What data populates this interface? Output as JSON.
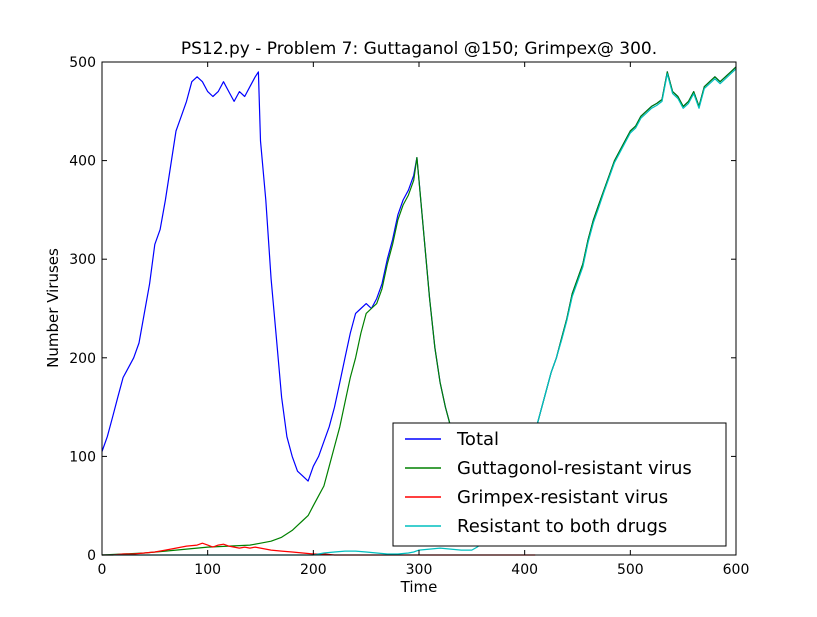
{
  "chart_data": {
    "type": "line",
    "title": "PS12.py - Problem 7: Guttaganol @150; Grimpex@ 300.",
    "xlabel": "Time",
    "ylabel": "Number Viruses",
    "xlim": [
      0,
      600
    ],
    "ylim": [
      0,
      500
    ],
    "xticks": [
      0,
      100,
      200,
      300,
      400,
      500,
      600
    ],
    "yticks": [
      0,
      100,
      200,
      300,
      400,
      500
    ],
    "grid": false,
    "legend_position": "lower-right",
    "series": [
      {
        "name": "Total",
        "color": "#0000ff",
        "points": [
          [
            0,
            105
          ],
          [
            5,
            120
          ],
          [
            10,
            140
          ],
          [
            15,
            160
          ],
          [
            20,
            180
          ],
          [
            25,
            190
          ],
          [
            30,
            200
          ],
          [
            35,
            215
          ],
          [
            40,
            245
          ],
          [
            45,
            275
          ],
          [
            50,
            315
          ],
          [
            55,
            330
          ],
          [
            60,
            360
          ],
          [
            65,
            395
          ],
          [
            70,
            430
          ],
          [
            75,
            445
          ],
          [
            80,
            460
          ],
          [
            85,
            480
          ],
          [
            90,
            485
          ],
          [
            95,
            480
          ],
          [
            100,
            470
          ],
          [
            105,
            465
          ],
          [
            110,
            470
          ],
          [
            115,
            480
          ],
          [
            120,
            470
          ],
          [
            125,
            460
          ],
          [
            130,
            470
          ],
          [
            135,
            465
          ],
          [
            140,
            475
          ],
          [
            145,
            485
          ],
          [
            148,
            490
          ],
          [
            150,
            420
          ],
          [
            155,
            360
          ],
          [
            160,
            280
          ],
          [
            165,
            220
          ],
          [
            170,
            160
          ],
          [
            175,
            120
          ],
          [
            180,
            100
          ],
          [
            185,
            85
          ],
          [
            190,
            80
          ],
          [
            195,
            75
          ],
          [
            200,
            90
          ],
          [
            205,
            100
          ],
          [
            210,
            115
          ],
          [
            215,
            130
          ],
          [
            220,
            150
          ],
          [
            225,
            175
          ],
          [
            230,
            200
          ],
          [
            235,
            225
          ],
          [
            240,
            245
          ],
          [
            245,
            250
          ],
          [
            250,
            255
          ],
          [
            255,
            250
          ],
          [
            260,
            260
          ],
          [
            265,
            275
          ],
          [
            270,
            300
          ],
          [
            275,
            320
          ],
          [
            280,
            345
          ],
          [
            285,
            360
          ],
          [
            290,
            370
          ],
          [
            295,
            385
          ],
          [
            298,
            403
          ],
          [
            300,
            380
          ],
          [
            305,
            320
          ],
          [
            310,
            260
          ],
          [
            315,
            210
          ],
          [
            320,
            175
          ],
          [
            325,
            150
          ],
          [
            330,
            130
          ],
          [
            335,
            115
          ],
          [
            340,
            95
          ],
          [
            345,
            75
          ],
          [
            350,
            55
          ],
          [
            355,
            40
          ],
          [
            360,
            30
          ],
          [
            365,
            25
          ],
          [
            370,
            20
          ],
          [
            375,
            20
          ],
          [
            380,
            25
          ],
          [
            385,
            35
          ],
          [
            390,
            55
          ],
          [
            395,
            75
          ],
          [
            400,
            95
          ],
          [
            405,
            110
          ],
          [
            410,
            125
          ],
          [
            415,
            145
          ],
          [
            420,
            165
          ],
          [
            425,
            185
          ],
          [
            430,
            200
          ],
          [
            435,
            220
          ],
          [
            440,
            240
          ],
          [
            445,
            265
          ],
          [
            450,
            280
          ],
          [
            455,
            295
          ],
          [
            460,
            320
          ],
          [
            465,
            340
          ],
          [
            470,
            355
          ],
          [
            475,
            370
          ],
          [
            480,
            385
          ],
          [
            485,
            400
          ],
          [
            490,
            410
          ],
          [
            495,
            420
          ],
          [
            500,
            430
          ],
          [
            505,
            435
          ],
          [
            510,
            445
          ],
          [
            515,
            450
          ],
          [
            520,
            455
          ],
          [
            525,
            458
          ],
          [
            530,
            462
          ],
          [
            535,
            490
          ],
          [
            540,
            470
          ],
          [
            545,
            465
          ],
          [
            550,
            455
          ],
          [
            555,
            460
          ],
          [
            560,
            470
          ],
          [
            565,
            455
          ],
          [
            570,
            475
          ],
          [
            575,
            480
          ],
          [
            580,
            485
          ],
          [
            585,
            480
          ],
          [
            590,
            485
          ],
          [
            595,
            490
          ],
          [
            600,
            495
          ]
        ]
      },
      {
        "name": "Guttagonol-resistant virus",
        "color": "#008000",
        "points": [
          [
            0,
            0
          ],
          [
            20,
            1
          ],
          [
            40,
            2
          ],
          [
            60,
            4
          ],
          [
            80,
            6
          ],
          [
            100,
            8
          ],
          [
            120,
            9
          ],
          [
            140,
            10
          ],
          [
            150,
            12
          ],
          [
            160,
            14
          ],
          [
            170,
            18
          ],
          [
            180,
            25
          ],
          [
            185,
            30
          ],
          [
            190,
            35
          ],
          [
            195,
            40
          ],
          [
            200,
            50
          ],
          [
            205,
            60
          ],
          [
            210,
            70
          ],
          [
            215,
            90
          ],
          [
            220,
            110
          ],
          [
            225,
            130
          ],
          [
            230,
            155
          ],
          [
            235,
            180
          ],
          [
            240,
            200
          ],
          [
            245,
            225
          ],
          [
            250,
            245
          ],
          [
            255,
            250
          ],
          [
            260,
            255
          ],
          [
            265,
            270
          ],
          [
            270,
            295
          ],
          [
            275,
            315
          ],
          [
            280,
            340
          ],
          [
            285,
            355
          ],
          [
            290,
            365
          ],
          [
            295,
            380
          ],
          [
            298,
            403
          ],
          [
            300,
            380
          ],
          [
            305,
            320
          ],
          [
            310,
            260
          ],
          [
            315,
            210
          ],
          [
            320,
            175
          ],
          [
            325,
            150
          ],
          [
            330,
            130
          ],
          [
            335,
            115
          ],
          [
            340,
            95
          ],
          [
            345,
            75
          ],
          [
            350,
            55
          ],
          [
            355,
            40
          ],
          [
            360,
            30
          ],
          [
            365,
            25
          ],
          [
            370,
            20
          ],
          [
            375,
            20
          ],
          [
            380,
            25
          ],
          [
            385,
            35
          ],
          [
            390,
            55
          ],
          [
            395,
            75
          ],
          [
            400,
            95
          ],
          [
            405,
            110
          ],
          [
            410,
            125
          ],
          [
            415,
            145
          ],
          [
            420,
            165
          ],
          [
            425,
            185
          ],
          [
            430,
            200
          ],
          [
            435,
            220
          ],
          [
            440,
            240
          ],
          [
            445,
            265
          ],
          [
            450,
            280
          ],
          [
            455,
            295
          ],
          [
            460,
            320
          ],
          [
            465,
            340
          ],
          [
            470,
            355
          ],
          [
            475,
            370
          ],
          [
            480,
            385
          ],
          [
            485,
            400
          ],
          [
            490,
            410
          ],
          [
            495,
            420
          ],
          [
            500,
            430
          ],
          [
            505,
            435
          ],
          [
            510,
            445
          ],
          [
            515,
            450
          ],
          [
            520,
            455
          ],
          [
            525,
            458
          ],
          [
            530,
            462
          ],
          [
            535,
            490
          ],
          [
            540,
            470
          ],
          [
            545,
            465
          ],
          [
            550,
            455
          ],
          [
            555,
            460
          ],
          [
            560,
            470
          ],
          [
            565,
            455
          ],
          [
            570,
            475
          ],
          [
            575,
            480
          ],
          [
            580,
            485
          ],
          [
            585,
            480
          ],
          [
            590,
            485
          ],
          [
            595,
            490
          ],
          [
            600,
            495
          ]
        ]
      },
      {
        "name": "Grimpex-resistant virus",
        "color": "#ff0000",
        "points": [
          [
            0,
            0
          ],
          [
            10,
            0
          ],
          [
            20,
            1
          ],
          [
            30,
            1
          ],
          [
            40,
            2
          ],
          [
            50,
            3
          ],
          [
            60,
            5
          ],
          [
            70,
            7
          ],
          [
            80,
            9
          ],
          [
            90,
            10
          ],
          [
            95,
            12
          ],
          [
            100,
            10
          ],
          [
            105,
            8
          ],
          [
            110,
            10
          ],
          [
            115,
            11
          ],
          [
            120,
            9
          ],
          [
            125,
            8
          ],
          [
            130,
            7
          ],
          [
            135,
            8
          ],
          [
            140,
            7
          ],
          [
            145,
            8
          ],
          [
            150,
            7
          ],
          [
            160,
            5
          ],
          [
            170,
            4
          ],
          [
            180,
            3
          ],
          [
            190,
            2
          ],
          [
            200,
            1
          ],
          [
            210,
            1
          ],
          [
            220,
            0
          ],
          [
            240,
            0
          ],
          [
            260,
            0
          ],
          [
            280,
            0
          ],
          [
            300,
            0
          ],
          [
            320,
            0
          ],
          [
            340,
            0
          ],
          [
            360,
            0
          ],
          [
            380,
            0
          ],
          [
            400,
            0
          ],
          [
            410,
            0
          ]
        ]
      },
      {
        "name": "Resistant to both drugs",
        "color": "#00bfbf",
        "points": [
          [
            0,
            0
          ],
          [
            50,
            0
          ],
          [
            100,
            0
          ],
          [
            150,
            0
          ],
          [
            200,
            0
          ],
          [
            210,
            2
          ],
          [
            220,
            3
          ],
          [
            230,
            4
          ],
          [
            240,
            4
          ],
          [
            250,
            3
          ],
          [
            260,
            2
          ],
          [
            270,
            1
          ],
          [
            280,
            1
          ],
          [
            290,
            2
          ],
          [
            295,
            3
          ],
          [
            300,
            5
          ],
          [
            310,
            6
          ],
          [
            320,
            7
          ],
          [
            330,
            6
          ],
          [
            340,
            5
          ],
          [
            350,
            5
          ],
          [
            355,
            8
          ],
          [
            360,
            12
          ],
          [
            365,
            15
          ],
          [
            370,
            18
          ],
          [
            375,
            20
          ],
          [
            380,
            25
          ],
          [
            385,
            35
          ],
          [
            390,
            55
          ],
          [
            395,
            75
          ],
          [
            400,
            95
          ],
          [
            405,
            110
          ],
          [
            410,
            125
          ],
          [
            415,
            145
          ],
          [
            420,
            165
          ],
          [
            425,
            185
          ],
          [
            430,
            200
          ],
          [
            435,
            218
          ],
          [
            440,
            238
          ],
          [
            445,
            262
          ],
          [
            450,
            277
          ],
          [
            455,
            292
          ],
          [
            460,
            317
          ],
          [
            465,
            337
          ],
          [
            470,
            352
          ],
          [
            475,
            368
          ],
          [
            480,
            383
          ],
          [
            485,
            398
          ],
          [
            490,
            408
          ],
          [
            495,
            418
          ],
          [
            500,
            428
          ],
          [
            505,
            433
          ],
          [
            510,
            443
          ],
          [
            515,
            448
          ],
          [
            520,
            453
          ],
          [
            525,
            456
          ],
          [
            530,
            460
          ],
          [
            535,
            488
          ],
          [
            540,
            468
          ],
          [
            545,
            463
          ],
          [
            550,
            453
          ],
          [
            555,
            458
          ],
          [
            560,
            468
          ],
          [
            565,
            453
          ],
          [
            570,
            473
          ],
          [
            575,
            478
          ],
          [
            580,
            483
          ],
          [
            585,
            478
          ],
          [
            590,
            483
          ],
          [
            595,
            488
          ],
          [
            600,
            493
          ]
        ]
      }
    ]
  }
}
